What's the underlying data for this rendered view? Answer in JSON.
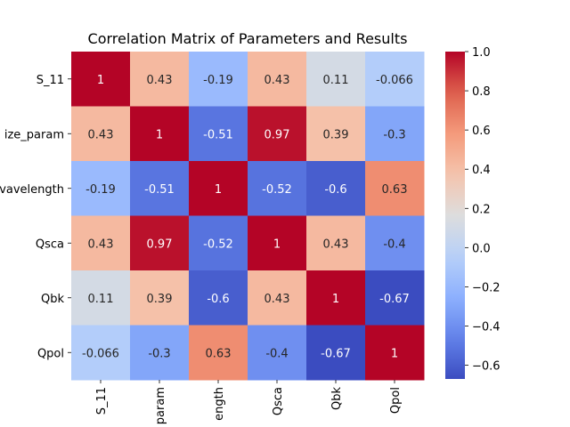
{
  "chart_data": {
    "type": "heatmap",
    "title": "Correlation Matrix of Parameters and Results",
    "rows": [
      "S_11",
      "size_param",
      "wavelength",
      "Qsca",
      "Qbk",
      "Qpol"
    ],
    "columns": [
      "S_11",
      "size_param",
      "wavelength",
      "Qsca",
      "Qbk",
      "Qpol"
    ],
    "row_labels_shown": [
      "S_11",
      "ize_param",
      "vavelength",
      "Qsca",
      "Qbk",
      "Qpol"
    ],
    "column_labels_shown": [
      "S_11",
      "param",
      "ength",
      "Qsca",
      "Qbk",
      "Qpol"
    ],
    "values": [
      [
        1,
        0.43,
        -0.19,
        0.43,
        0.11,
        -0.066
      ],
      [
        0.43,
        1,
        -0.51,
        0.97,
        0.39,
        -0.3
      ],
      [
        -0.19,
        -0.51,
        1,
        -0.52,
        -0.6,
        0.63
      ],
      [
        0.43,
        0.97,
        -0.52,
        1,
        0.43,
        -0.4
      ],
      [
        0.11,
        0.39,
        -0.6,
        0.43,
        1,
        -0.67
      ],
      [
        -0.066,
        -0.3,
        0.63,
        -0.4,
        -0.67,
        1
      ]
    ],
    "annotations": [
      [
        "1",
        "0.43",
        "-0.19",
        "0.43",
        "0.11",
        "-0.066"
      ],
      [
        "0.43",
        "1",
        "-0.51",
        "0.97",
        "0.39",
        "-0.3"
      ],
      [
        "-0.19",
        "-0.51",
        "1",
        "-0.52",
        "-0.6",
        "0.63"
      ],
      [
        "0.43",
        "0.97",
        "-0.52",
        "1",
        "0.43",
        "-0.4"
      ],
      [
        "0.11",
        "0.39",
        "-0.6",
        "0.43",
        "1",
        "-0.67"
      ],
      [
        "-0.066",
        "-0.3",
        "0.63",
        "-0.4",
        "-0.67",
        "1"
      ]
    ],
    "colormap": "coolwarm",
    "vmin": -0.67,
    "vmax": 1,
    "colorbar_ticks": [
      1.0,
      0.8,
      0.6,
      0.4,
      0.2,
      0.0,
      -0.2,
      -0.4,
      -0.6
    ],
    "colorbar_tick_labels": [
      "1.0",
      "0.8",
      "0.6",
      "0.4",
      "0.2",
      "0.0",
      "−0.2",
      "−0.4",
      "−0.6"
    ],
    "colorbar_position": "right",
    "grid": false
  }
}
